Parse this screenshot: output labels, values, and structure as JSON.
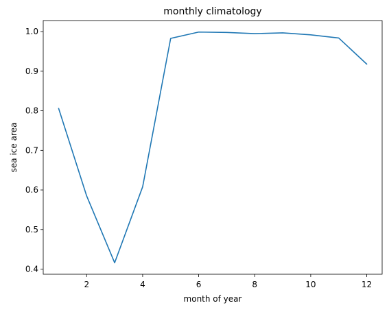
{
  "chart_data": {
    "type": "line",
    "title": "monthly climatology",
    "xlabel": "month of year",
    "ylabel": "sea ice area",
    "x": [
      1,
      2,
      3,
      4,
      5,
      6,
      7,
      8,
      9,
      10,
      11,
      12
    ],
    "series": [
      {
        "values": [
          0.806,
          0.585,
          0.416,
          0.608,
          0.983,
          0.999,
          0.998,
          0.995,
          0.997,
          0.992,
          0.984,
          0.918
        ],
        "color": "#1f77b4"
      }
    ],
    "xticks": [
      2,
      4,
      6,
      8,
      10,
      12
    ],
    "xtick_labels": [
      "2",
      "4",
      "6",
      "8",
      "10",
      "12"
    ],
    "yticks": [
      0.4,
      0.5,
      0.6,
      0.7,
      0.8,
      0.9,
      1.0
    ],
    "ytick_labels": [
      "0.4",
      "0.5",
      "0.6",
      "0.7",
      "0.8",
      "0.9",
      "1.0"
    ],
    "xlim": [
      0.45,
      12.55
    ],
    "ylim": [
      0.387,
      1.028
    ],
    "grid": false,
    "legend": false
  }
}
